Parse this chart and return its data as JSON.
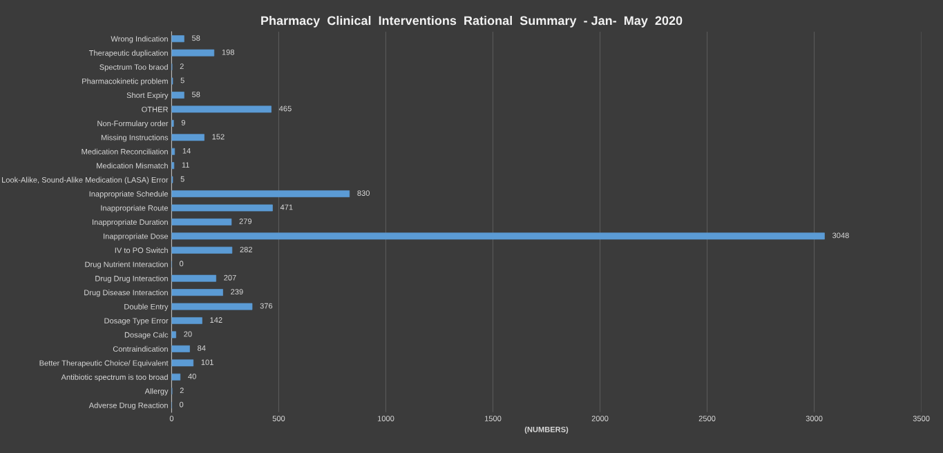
{
  "chart_data": {
    "type": "bar",
    "orientation": "horizontal",
    "title": "Pharmacy  Clinical  Interventions  Rational  Summary  - Jan-  May  2020",
    "xlabel": "(NUMBERS)",
    "categories": [
      "Wrong Indication",
      "Therapeutic duplication",
      "Spectrum Too braod",
      "Pharmacokinetic problem",
      "Short Expiry",
      "OTHER",
      "Non-Formulary order",
      "Missing Instructions",
      "Medication Reconciliation",
      "Medication Mismatch",
      "Look-Alike, Sound-Alike Medication (LASA) Error",
      "Inappropriate Schedule",
      "Inappropriate Route",
      "Inappropriate Duration",
      "Inappropriate Dose",
      "IV to PO Switch",
      "Drug Nutrient Interaction",
      "Drug Drug Interaction",
      "Drug Disease Interaction",
      "Double Entry",
      "Dosage Type Error",
      "Dosage Calc",
      "Contraindication",
      "Better Therapeutic Choice/ Equivalent",
      "Antibiotic spectrum is too broad",
      "Allergy",
      "Adverse Drug Reaction"
    ],
    "values": [
      58,
      198,
      2,
      5,
      58,
      465,
      9,
      152,
      14,
      11,
      5,
      830,
      471,
      279,
      3048,
      282,
      0,
      207,
      239,
      376,
      142,
      20,
      84,
      101,
      40,
      2,
      0
    ],
    "color": "#5b9bd5",
    "data_labels": true,
    "xlim": [
      0,
      3500
    ],
    "xticks": [
      0,
      500,
      1000,
      1500,
      2000,
      2500,
      3000,
      3500
    ],
    "grid": "x"
  }
}
